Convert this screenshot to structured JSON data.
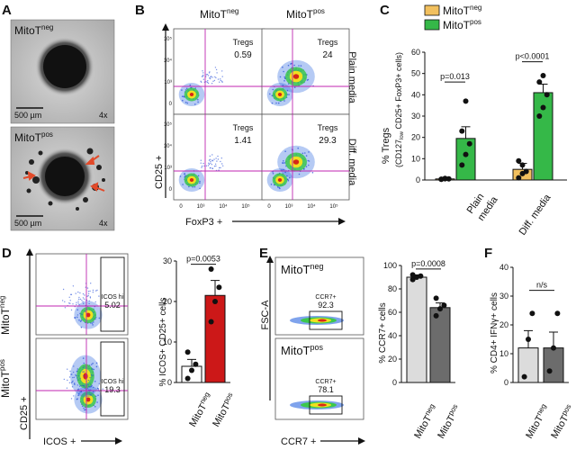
{
  "panels": {
    "A": {
      "label": "A",
      "images": [
        {
          "title_main": "MitoT",
          "title_sup": "neg",
          "scale": "500 µm",
          "mag": "4x"
        },
        {
          "title_main": "MitoT",
          "title_sup": "pos",
          "scale": "500 µm",
          "mag": "4x"
        }
      ]
    },
    "B": {
      "label": "B",
      "col_titles": [
        {
          "main": "MitoT",
          "sup": "neg"
        },
        {
          "main": "MitoT",
          "sup": "pos"
        }
      ],
      "row_titles": [
        "Plain media",
        "Diff. media"
      ],
      "gate_label": "Tregs",
      "values": [
        "0.59",
        "24",
        "1.41",
        "29.3"
      ],
      "ylabel": "CD25 +",
      "xlabel": "FoxP3 +",
      "ticks": [
        "0",
        "10³",
        "10⁴",
        "10⁵"
      ]
    },
    "C": {
      "label": "C",
      "chart_data": {
        "type": "bar",
        "title": "",
        "ylabel_main": "% Tregs",
        "ylabel_sub_pre": "(CD127",
        "ylabel_sub_low": "low",
        "ylabel_sub_post": " CD25+ FoxP3+ cells)",
        "ylim": [
          0,
          60
        ],
        "yticks": [
          "0",
          "10",
          "20",
          "30",
          "40",
          "50",
          "60"
        ],
        "categories": [
          "Plain media",
          "Diff. media"
        ],
        "category_lines": [
          [
            "Plain",
            "media"
          ],
          [
            "Diff. media"
          ]
        ],
        "series": [
          {
            "name": "MitoT",
            "sup": "neg",
            "color": "#f2c05e",
            "values": [
              0.5,
              5
            ],
            "sem": [
              0.3,
              2.8
            ],
            "points": [
              [
                0.4,
                0.6,
                0.5,
                0.3,
                0.7
              ],
              [
                1,
                3,
                4,
                9,
                7
              ]
            ]
          },
          {
            "name": "MitoT",
            "sup": "pos",
            "color": "#35b848",
            "values": [
              19.5,
              41
            ],
            "sem": [
              5.5,
              4
            ],
            "points": [
              [
                7,
                12,
                17,
                23,
                37
              ],
              [
                30,
                34,
                40,
                46,
                49
              ]
            ]
          }
        ],
        "pvalues": [
          "p=0.013",
          "p<0.0001"
        ]
      }
    },
    "D": {
      "label": "D",
      "row_titles": [
        {
          "main": "MitoT",
          "sup": "neg"
        },
        {
          "main": "MitoT",
          "sup": "pos"
        }
      ],
      "gate_label": "ICOS hi",
      "values": [
        "5.02",
        "19.3"
      ],
      "ylabel": "CD25 +",
      "xlabel": "ICOS +",
      "chart_data": {
        "type": "bar",
        "ylabel": "% ICOS+ CD25+ cells",
        "ylim": [
          0,
          30
        ],
        "yticks": [
          "0",
          "10",
          "20",
          "30"
        ],
        "categories": [
          {
            "main": "MitoT",
            "sup": "neg"
          },
          {
            "main": "MitoT",
            "sup": "pos"
          }
        ],
        "values": [
          4,
          21.5
        ],
        "sem": [
          1.7,
          3.7
        ],
        "colors": [
          "#ffffff",
          "#cc1818"
        ],
        "points": [
          [
            1,
            3,
            4.5,
            7.5
          ],
          [
            15,
            20,
            23.5,
            28
          ]
        ],
        "pvalue": "p=0.0053"
      }
    },
    "E": {
      "label": "E",
      "row_titles": [
        {
          "main": "MitoT",
          "sup": "neg"
        },
        {
          "main": "MitoT",
          "sup": "pos"
        }
      ],
      "gate_label": "CCR7+",
      "values": [
        "92.3",
        "78.1"
      ],
      "ylabel": "FSC-A",
      "xlabel": "CCR7 +",
      "chart_data": {
        "type": "bar",
        "ylabel": "% CCR7+ cells",
        "ylim": [
          0,
          100
        ],
        "yticks": [
          "0",
          "20",
          "40",
          "60",
          "80",
          "100"
        ],
        "categories": [
          {
            "main": "MitoT",
            "sup": "neg"
          },
          {
            "main": "MitoT",
            "sup": "pos"
          }
        ],
        "values": [
          90,
          64
        ],
        "sem": [
          2,
          4
        ],
        "colors": [
          "#dcdcdc",
          "#6c6c6c"
        ],
        "points": [
          [
            88,
            90,
            91,
            92
          ],
          [
            57,
            63,
            66,
            72
          ]
        ],
        "pvalue": "p=0.0008"
      }
    },
    "F": {
      "label": "F",
      "chart_data": {
        "type": "bar",
        "ylabel": "% CD4+ IFNγ+ cells",
        "ylim": [
          0,
          40
        ],
        "yticks": [
          "0",
          "10",
          "20",
          "30",
          "40"
        ],
        "categories": [
          {
            "main": "MitoT",
            "sup": "neg"
          },
          {
            "main": "MitoT",
            "sup": "pos"
          }
        ],
        "values": [
          12,
          12
        ],
        "sem": [
          6,
          5.5
        ],
        "colors": [
          "#dcdcdc",
          "#6c6c6c"
        ],
        "points": [
          [
            2,
            15,
            24
          ],
          [
            4,
            12,
            24
          ]
        ],
        "pvalue": "n/s"
      }
    }
  }
}
